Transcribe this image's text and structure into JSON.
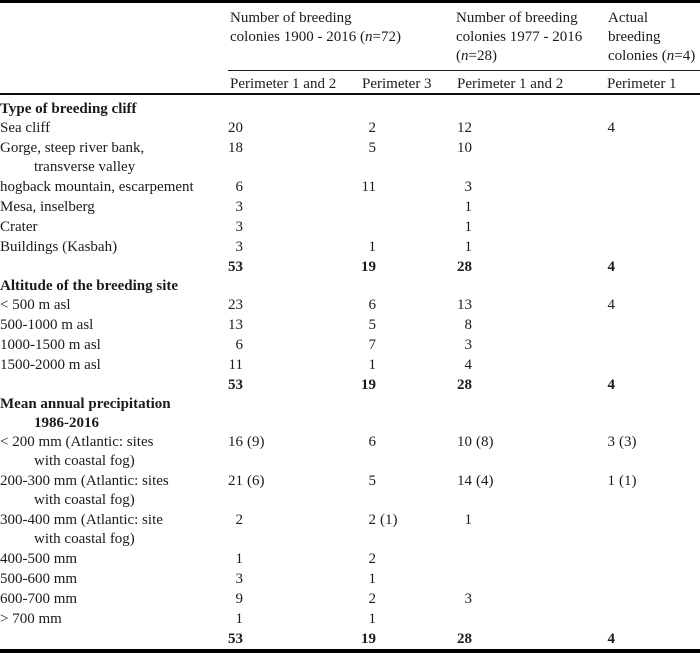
{
  "header": {
    "groups": [
      {
        "pre": "Number of breeding\ncolonies 1900 - 2016 (",
        "n": "n",
        "post": "=72)"
      },
      {
        "pre": "Number of breeding\ncolonies 1977 - 2016\n(",
        "n": "n",
        "post": "=28)"
      },
      {
        "pre": "Actual\nbreeding\ncolonies (",
        "n": "n",
        "post": "=4)"
      }
    ],
    "sub_headers": [
      "Perimeter 1 and 2",
      "Perimeter 3",
      "Perimeter 1 and 2",
      "Perimeter 1"
    ]
  },
  "sections": [
    {
      "title": "Type of breeding cliff",
      "rows": [
        {
          "label": "Sea cliff",
          "v": [
            "20",
            "",
            "2",
            "",
            "12",
            "",
            "4",
            ""
          ]
        },
        {
          "label": "Gorge, steep river bank,\ntransverse valley",
          "v": [
            "18",
            "",
            "5",
            "",
            "10",
            "",
            "",
            ""
          ]
        },
        {
          "label": "hogback mountain, escarpement",
          "v": [
            "6",
            "",
            "11",
            "",
            "3",
            "",
            "",
            ""
          ]
        },
        {
          "label": "Mesa, inselberg",
          "v": [
            "3",
            "",
            "",
            "",
            "1",
            "",
            "",
            ""
          ]
        },
        {
          "label": "Crater",
          "v": [
            "3",
            "",
            "",
            "",
            "1",
            "",
            "",
            ""
          ]
        },
        {
          "label": "Buildings (Kasbah)",
          "v": [
            "3",
            "",
            "1",
            "",
            "1",
            "",
            "",
            ""
          ]
        }
      ],
      "total": [
        "53",
        "19",
        "28",
        "4"
      ]
    },
    {
      "title": "Altitude of the breeding site",
      "rows": [
        {
          "label": "< 500 m asl",
          "v": [
            "23",
            "",
            "6",
            "",
            "13",
            "",
            "4",
            ""
          ]
        },
        {
          "label": "500-1000 m asl",
          "v": [
            "13",
            "",
            "5",
            "",
            "8",
            "",
            "",
            ""
          ]
        },
        {
          "label": "1000-1500 m asl",
          "v": [
            "6",
            "",
            "7",
            "",
            "3",
            "",
            "",
            ""
          ]
        },
        {
          "label": "1500-2000 m asl",
          "v": [
            "11",
            "",
            "1",
            "",
            "4",
            "",
            "",
            ""
          ]
        }
      ],
      "total": [
        "53",
        "19",
        "28",
        "4"
      ]
    },
    {
      "title": "Mean annual precipitation\n1986-2016",
      "rows": [
        {
          "label": "< 200 mm (Atlantic: sites\nwith coastal fog)",
          "v": [
            "16",
            "(9)",
            "6",
            "",
            "10",
            "(8)",
            "3",
            "(3)"
          ]
        },
        {
          "label": "200-300 mm (Atlantic: sites\nwith coastal fog)",
          "v": [
            "21",
            "(6)",
            "5",
            "",
            "14",
            "(4)",
            "1",
            "(1)"
          ]
        },
        {
          "label": "300-400 mm (Atlantic: site\nwith coastal fog)",
          "v": [
            "2",
            "",
            "2",
            "(1)",
            "1",
            "",
            "",
            ""
          ]
        },
        {
          "label": "400-500 mm",
          "v": [
            "1",
            "",
            "2",
            "",
            "",
            "",
            "",
            ""
          ]
        },
        {
          "label": "500-600 mm",
          "v": [
            "3",
            "",
            "1",
            "",
            "",
            "",
            "",
            ""
          ]
        },
        {
          "label": "600-700 mm",
          "v": [
            "9",
            "",
            "2",
            "",
            "3",
            "",
            "",
            ""
          ]
        },
        {
          "label": "> 700 mm",
          "v": [
            "1",
            "",
            "1",
            "",
            "",
            "",
            "",
            ""
          ]
        }
      ],
      "total": [
        "53",
        "19",
        "28",
        "4"
      ]
    }
  ],
  "colors": {
    "text": "#1b1b1b",
    "rule": "#000000"
  }
}
